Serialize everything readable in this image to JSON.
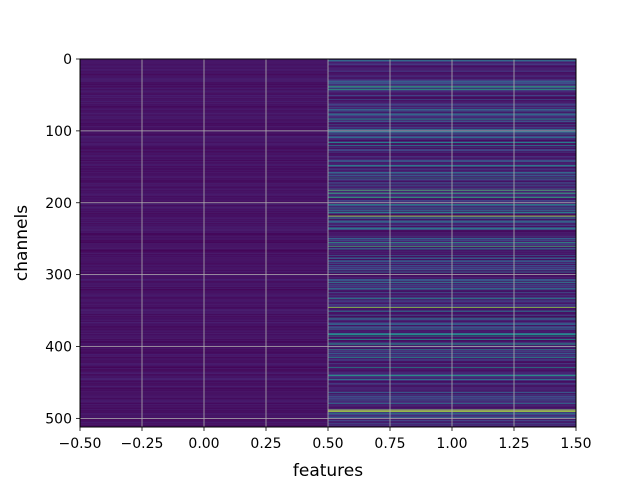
{
  "chart_data": {
    "type": "heatmap",
    "title": "",
    "xlabel": "features",
    "ylabel": "channels",
    "xlim": [
      -0.5,
      1.5
    ],
    "ylim": [
      512,
      0
    ],
    "n_rows": 512,
    "columns": [
      0,
      1
    ],
    "colormap": "viridis",
    "grid": true,
    "x_ticks": [
      "−0.50",
      "−0.25",
      "0.00",
      "0.25",
      "0.50",
      "0.75",
      "1.00",
      "1.25",
      "1.50"
    ],
    "x_tick_values": [
      -0.5,
      -0.25,
      0.0,
      0.25,
      0.5,
      0.75,
      1.0,
      1.25,
      1.5
    ],
    "y_ticks": [
      "0",
      "100",
      "200",
      "300",
      "400",
      "500"
    ],
    "y_tick_values": [
      0,
      100,
      200,
      300,
      400,
      500
    ],
    "column_0": {
      "description": "uniformly low values (dark purple)",
      "value_range": [
        0.0,
        0.12
      ]
    },
    "column_1": {
      "description": "varied values, mostly low with many higher bands",
      "value_range": [
        0.0,
        1.0
      ],
      "highlight_rows": [
        {
          "row": 38,
          "value": 0.6
        },
        {
          "row": 42,
          "value": 0.55
        },
        {
          "row": 120,
          "value": 0.45
        },
        {
          "row": 165,
          "value": 0.5
        },
        {
          "row": 182,
          "value": 0.7
        },
        {
          "row": 186,
          "value": 0.65
        },
        {
          "row": 192,
          "value": 0.6
        },
        {
          "row": 218,
          "value": 0.9
        },
        {
          "row": 255,
          "value": 0.55
        },
        {
          "row": 260,
          "value": 0.65
        },
        {
          "row": 310,
          "value": 0.5
        },
        {
          "row": 345,
          "value": 0.85
        },
        {
          "row": 385,
          "value": 0.5
        },
        {
          "row": 440,
          "value": 0.55
        },
        {
          "row": 488,
          "value": 1.0
        },
        {
          "row": 490,
          "value": 0.9
        }
      ]
    }
  }
}
